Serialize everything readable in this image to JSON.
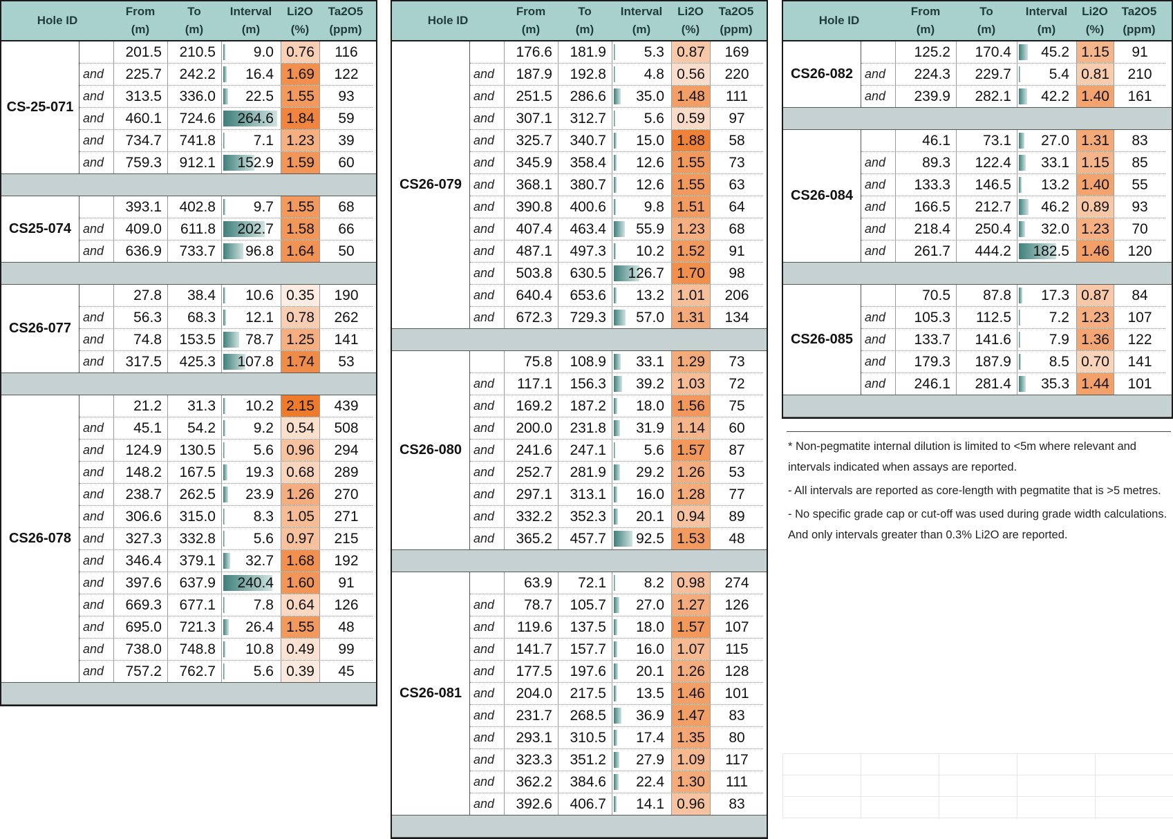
{
  "headers": [
    "Hole ID",
    "From\n(m)",
    "To\n(m)",
    "Interval\n(m)",
    "Li2O\n(%)",
    "Ta2O5\n(ppm)"
  ],
  "and_label": "and",
  "interval_max": 264.6,
  "colors": {
    "header": "#a8d0cd",
    "spacer": "#c6d1d1",
    "bar": "#3f7f7a",
    "li_low": "#fbe9df",
    "li_high": "#ee7a2c"
  },
  "columns": [
    {
      "holes": [
        {
          "id": "CS-25-071",
          "rows": [
            [
              "201.5",
              "210.5",
              "9.0",
              "0.76",
              "116"
            ],
            [
              "225.7",
              "242.2",
              "16.4",
              "1.69",
              "122"
            ],
            [
              "313.5",
              "336.0",
              "22.5",
              "1.55",
              "93"
            ],
            [
              "460.1",
              "724.6",
              "264.6",
              "1.84",
              "59"
            ],
            [
              "734.7",
              "741.8",
              "7.1",
              "1.23",
              "39"
            ],
            [
              "759.3",
              "912.1",
              "152.9",
              "1.59",
              "60"
            ]
          ]
        },
        {
          "id": "CS25-074",
          "rows": [
            [
              "393.1",
              "402.8",
              "9.7",
              "1.55",
              "68"
            ],
            [
              "409.0",
              "611.8",
              "202.7",
              "1.58",
              "66"
            ],
            [
              "636.9",
              "733.7",
              "96.8",
              "1.64",
              "50"
            ]
          ]
        },
        {
          "id": "CS26-077",
          "rows": [
            [
              "27.8",
              "38.4",
              "10.6",
              "0.35",
              "190"
            ],
            [
              "56.3",
              "68.3",
              "12.1",
              "0.78",
              "262"
            ],
            [
              "74.8",
              "153.5",
              "78.7",
              "1.25",
              "141"
            ],
            [
              "317.5",
              "425.3",
              "107.8",
              "1.74",
              "53"
            ]
          ]
        },
        {
          "id": "CS26-078",
          "rows": [
            [
              "21.2",
              "31.3",
              "10.2",
              "2.15",
              "439"
            ],
            [
              "45.1",
              "54.2",
              "9.2",
              "0.54",
              "508"
            ],
            [
              "124.9",
              "130.5",
              "5.6",
              "0.96",
              "294"
            ],
            [
              "148.2",
              "167.5",
              "19.3",
              "0.68",
              "289"
            ],
            [
              "238.7",
              "262.5",
              "23.9",
              "1.26",
              "270"
            ],
            [
              "306.6",
              "315.0",
              "8.3",
              "1.05",
              "271"
            ],
            [
              "327.3",
              "332.8",
              "5.6",
              "0.97",
              "215"
            ],
            [
              "346.4",
              "379.1",
              "32.7",
              "1.68",
              "192"
            ],
            [
              "397.6",
              "637.9",
              "240.4",
              "1.60",
              "91"
            ],
            [
              "669.3",
              "677.1",
              "7.8",
              "0.64",
              "126"
            ],
            [
              "695.0",
              "721.3",
              "26.4",
              "1.55",
              "48"
            ],
            [
              "738.0",
              "748.8",
              "10.8",
              "0.49",
              "99"
            ],
            [
              "757.2",
              "762.7",
              "5.6",
              "0.39",
              "45"
            ]
          ]
        }
      ]
    },
    {
      "holes": [
        {
          "id": "CS26-079",
          "rows": [
            [
              "176.6",
              "181.9",
              "5.3",
              "0.87",
              "169"
            ],
            [
              "187.9",
              "192.8",
              "4.8",
              "0.56",
              "220"
            ],
            [
              "251.5",
              "286.6",
              "35.0",
              "1.48",
              "111"
            ],
            [
              "307.1",
              "312.7",
              "5.6",
              "0.59",
              "97"
            ],
            [
              "325.7",
              "340.7",
              "15.0",
              "1.88",
              "58"
            ],
            [
              "345.9",
              "358.4",
              "12.6",
              "1.55",
              "73"
            ],
            [
              "368.1",
              "380.7",
              "12.6",
              "1.55",
              "63"
            ],
            [
              "390.8",
              "400.6",
              "9.8",
              "1.51",
              "64"
            ],
            [
              "407.4",
              "463.4",
              "55.9",
              "1.23",
              "68"
            ],
            [
              "487.1",
              "497.3",
              "10.2",
              "1.52",
              "91"
            ],
            [
              "503.8",
              "630.5",
              "126.7",
              "1.70",
              "98"
            ],
            [
              "640.4",
              "653.6",
              "13.2",
              "1.01",
              "206"
            ],
            [
              "672.3",
              "729.3",
              "57.0",
              "1.31",
              "134"
            ]
          ]
        },
        {
          "id": "CS26-080",
          "rows": [
            [
              "75.8",
              "108.9",
              "33.1",
              "1.29",
              "73"
            ],
            [
              "117.1",
              "156.3",
              "39.2",
              "1.03",
              "72"
            ],
            [
              "169.2",
              "187.2",
              "18.0",
              "1.56",
              "75"
            ],
            [
              "200.0",
              "231.8",
              "31.9",
              "1.14",
              "60"
            ],
            [
              "241.6",
              "247.1",
              "5.6",
              "1.57",
              "87"
            ],
            [
              "252.7",
              "281.9",
              "29.2",
              "1.26",
              "53"
            ],
            [
              "297.1",
              "313.1",
              "16.0",
              "1.28",
              "77"
            ],
            [
              "332.2",
              "352.3",
              "20.1",
              "0.94",
              "89"
            ],
            [
              "365.2",
              "457.7",
              "92.5",
              "1.53",
              "48"
            ]
          ]
        },
        {
          "id": "CS26-081",
          "rows": [
            [
              "63.9",
              "72.1",
              "8.2",
              "0.98",
              "274"
            ],
            [
              "78.7",
              "105.7",
              "27.0",
              "1.27",
              "126"
            ],
            [
              "119.6",
              "137.5",
              "18.0",
              "1.57",
              "107"
            ],
            [
              "141.7",
              "157.7",
              "16.0",
              "1.07",
              "115"
            ],
            [
              "177.5",
              "197.6",
              "20.1",
              "1.26",
              "128"
            ],
            [
              "204.0",
              "217.5",
              "13.5",
              "1.46",
              "101"
            ],
            [
              "231.7",
              "268.5",
              "36.9",
              "1.47",
              "83"
            ],
            [
              "293.1",
              "310.5",
              "17.4",
              "1.35",
              "80"
            ],
            [
              "323.3",
              "351.2",
              "27.9",
              "1.09",
              "117"
            ],
            [
              "362.2",
              "384.6",
              "22.4",
              "1.30",
              "111"
            ],
            [
              "392.6",
              "406.7",
              "14.1",
              "0.96",
              "83"
            ]
          ]
        }
      ]
    },
    {
      "holes": [
        {
          "id": "CS26-082",
          "rows": [
            [
              "125.2",
              "170.4",
              "45.2",
              "1.15",
              "91"
            ],
            [
              "224.3",
              "229.7",
              "5.4",
              "0.81",
              "210"
            ],
            [
              "239.9",
              "282.1",
              "42.2",
              "1.40",
              "161"
            ]
          ]
        },
        {
          "id": "CS26-084",
          "rows": [
            [
              "46.1",
              "73.1",
              "27.0",
              "1.31",
              "83"
            ],
            [
              "89.3",
              "122.4",
              "33.1",
              "1.15",
              "85"
            ],
            [
              "133.3",
              "146.5",
              "13.2",
              "1.40",
              "55"
            ],
            [
              "166.5",
              "212.7",
              "46.2",
              "0.89",
              "93"
            ],
            [
              "218.4",
              "250.4",
              "32.0",
              "1.23",
              "70"
            ],
            [
              "261.7",
              "444.2",
              "182.5",
              "1.46",
              "120"
            ]
          ]
        },
        {
          "id": "CS26-085",
          "rows": [
            [
              "70.5",
              "87.8",
              "17.3",
              "0.87",
              "84"
            ],
            [
              "105.3",
              "112.5",
              "7.2",
              "1.23",
              "107"
            ],
            [
              "133.7",
              "141.6",
              "7.9",
              "1.36",
              "122"
            ],
            [
              "179.3",
              "187.9",
              "8.5",
              "0.70",
              "141"
            ],
            [
              "246.1",
              "281.4",
              "35.3",
              "1.44",
              "101"
            ]
          ]
        }
      ]
    }
  ],
  "notes": [
    "* Non-pegmatite internal dilution is limited to <5m where relevant and intervals indicated when assays are reported.",
    "- All intervals are reported as core-length with pegmatite that is >5 metres.",
    "- No specific grade cap or cut-off was used during grade width calculations. And only intervals greater than 0.3% Li2O are reported."
  ]
}
